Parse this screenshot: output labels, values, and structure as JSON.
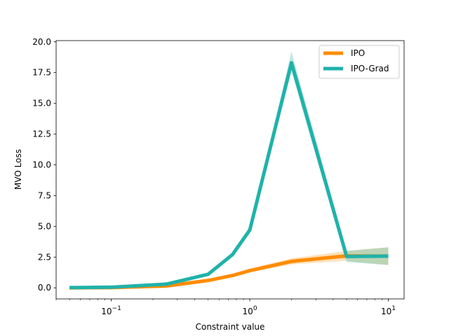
{
  "chart_data": {
    "type": "line",
    "title": "",
    "xlabel": "Constraint value",
    "ylabel": "MVO Loss",
    "xscale": "log",
    "xlim": [
      0.04,
      13
    ],
    "ylim": [
      -0.9,
      20.1
    ],
    "x_ticks": [
      {
        "value": 0.1,
        "base": "10",
        "exp": "−1"
      },
      {
        "value": 1,
        "base": "10",
        "exp": "0"
      },
      {
        "value": 10,
        "base": "10",
        "exp": "1"
      }
    ],
    "y_ticks": [
      {
        "value": 0,
        "label": "0.0"
      },
      {
        "value": 2.5,
        "label": "2.5"
      },
      {
        "value": 5,
        "label": "5.0"
      },
      {
        "value": 7.5,
        "label": "7.5"
      },
      {
        "value": 10,
        "label": "10.0"
      },
      {
        "value": 12.5,
        "label": "12.5"
      },
      {
        "value": 15,
        "label": "15.0"
      },
      {
        "value": 17.5,
        "label": "17.5"
      },
      {
        "value": 20,
        "label": "20.0"
      }
    ],
    "legend_position": "top-right",
    "grid": false,
    "series": [
      {
        "name": "IPO",
        "color": "#ff8c00",
        "band_color": "#ffbe6b",
        "x": [
          0.05,
          0.1,
          0.25,
          0.5,
          0.75,
          1,
          2,
          5,
          10
        ],
        "y": [
          0.0,
          0.02,
          0.15,
          0.6,
          1.0,
          1.4,
          2.15,
          2.6,
          2.58
        ],
        "lower": [
          0.0,
          0.0,
          0.1,
          0.5,
          0.9,
          1.25,
          1.9,
          2.2,
          1.85
        ],
        "upper": [
          0.02,
          0.05,
          0.22,
          0.7,
          1.1,
          1.55,
          2.4,
          3.0,
          3.3
        ]
      },
      {
        "name": "IPO-Grad",
        "color": "#20b2aa",
        "band_color": "#20b2aa",
        "x": [
          0.05,
          0.1,
          0.25,
          0.5,
          0.75,
          1,
          2,
          5,
          10
        ],
        "y": [
          0.02,
          0.05,
          0.3,
          1.1,
          2.7,
          4.7,
          18.3,
          2.55,
          2.58
        ],
        "lower": [
          0.0,
          0.0,
          0.22,
          1.0,
          2.6,
          4.6,
          17.6,
          2.1,
          1.85
        ],
        "upper": [
          0.05,
          0.1,
          0.4,
          1.2,
          2.8,
          4.8,
          19.2,
          3.0,
          3.3
        ]
      }
    ]
  }
}
